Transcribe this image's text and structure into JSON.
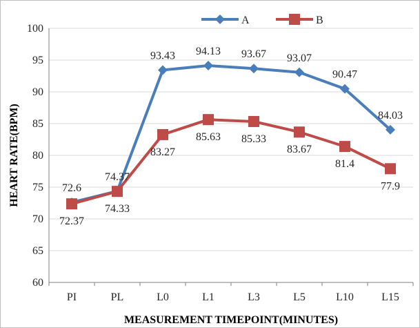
{
  "chart_data": {
    "type": "line",
    "categories": [
      "PI",
      "PL",
      "L0",
      "L1",
      "L3",
      "L5",
      "L10",
      "L15"
    ],
    "series": [
      {
        "name": "A",
        "color": "#4a7ebb",
        "marker": "diamond",
        "values": [
          72.6,
          74.37,
          93.43,
          94.13,
          93.67,
          93.07,
          90.47,
          84.03
        ],
        "labels": [
          "72.6",
          "74.37",
          "93.43",
          "94.13",
          "93.67",
          "93.07",
          "90.47",
          "84.03"
        ]
      },
      {
        "name": "B",
        "color": "#be4b48",
        "marker": "square",
        "values": [
          72.37,
          74.33,
          83.27,
          85.63,
          85.33,
          83.67,
          81.4,
          77.9
        ],
        "labels": [
          "72.37",
          "74.33",
          "83.27",
          "85.63",
          "85.33",
          "83.67",
          "81.4",
          "77.9"
        ]
      }
    ],
    "xlabel": "MEASUREMENT TIMEPOINT(MINUTES)",
    "ylabel": "HEART RATE(BPM)",
    "ylim": [
      60,
      100
    ],
    "yticks": [
      "60",
      "65",
      "70",
      "75",
      "80",
      "85",
      "90",
      "95",
      "100"
    ],
    "grid": true,
    "legend_position": "top"
  }
}
